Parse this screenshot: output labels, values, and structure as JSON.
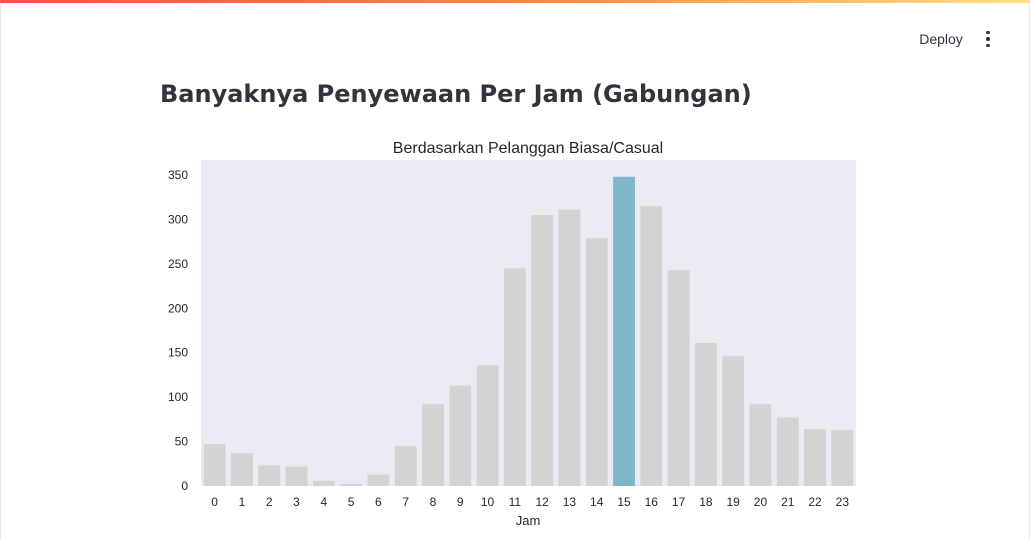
{
  "header": {
    "deploy_label": "Deploy",
    "menu_icon": "kebab-menu-icon"
  },
  "page_title": "Banyaknya Penyewaan Per Jam (Gabungan)",
  "colors": {
    "bar": "#d3d3d3",
    "highlight": "#7fb6c8",
    "plot_bg": "#eaeaf2",
    "accent": "#ff4b4b"
  },
  "chart_data": {
    "type": "bar",
    "title": "Berdasarkan Pelanggan Biasa/Casual",
    "xlabel": "Jam",
    "ylabel": "",
    "categories": [
      "0",
      "1",
      "2",
      "3",
      "4",
      "5",
      "6",
      "7",
      "8",
      "9",
      "10",
      "11",
      "12",
      "13",
      "14",
      "15",
      "16",
      "17",
      "18",
      "19",
      "20",
      "21",
      "22",
      "23"
    ],
    "values": [
      47,
      37,
      23,
      22,
      6,
      2,
      13,
      45,
      92,
      113,
      136,
      245,
      305,
      311,
      279,
      348,
      315,
      243,
      161,
      146,
      92,
      77,
      64,
      63
    ],
    "highlight_category": "15",
    "yticks": [
      0,
      50,
      100,
      150,
      200,
      250,
      300,
      350
    ],
    "ylim": [
      0,
      365
    ],
    "grid": false
  }
}
